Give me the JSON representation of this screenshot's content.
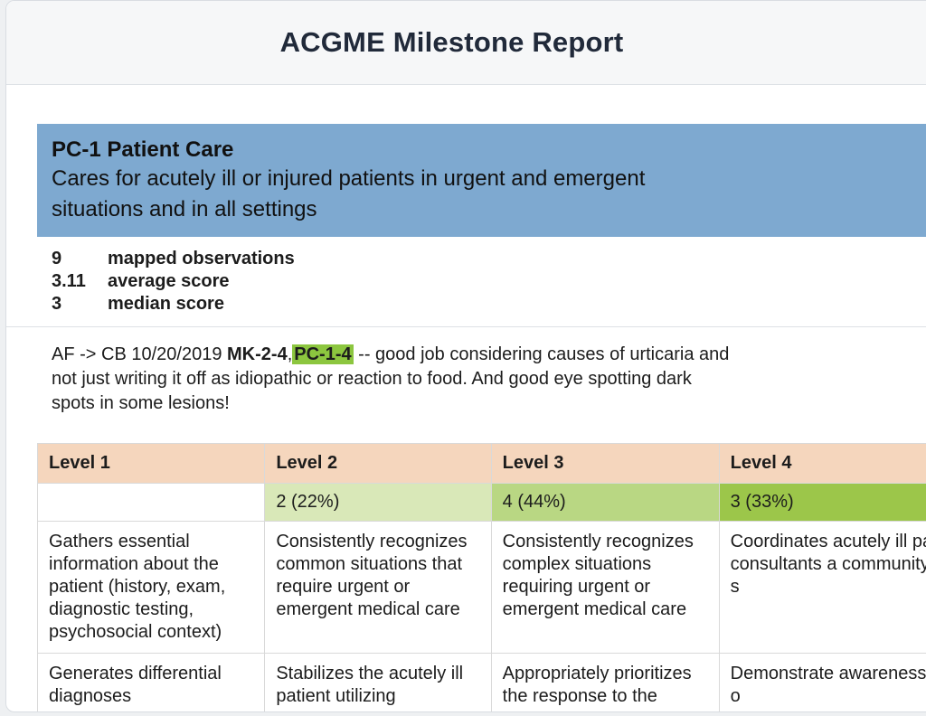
{
  "header": {
    "title": "ACGME Milestone Report"
  },
  "milestone": {
    "code": "PC-1 Patient Care",
    "description": "Cares for acutely ill or injured patients in urgent and emergent situations and in all settings"
  },
  "stats": [
    {
      "value": "9",
      "label": "mapped observations"
    },
    {
      "value": "3.11",
      "label": "average score"
    },
    {
      "value": "3",
      "label": "median score"
    }
  ],
  "comment": {
    "prefix": "AF -> CB 10/20/2019 ",
    "tag1": "MK-2-4",
    "separator": ",",
    "tag2": "PC-1-4",
    "text": " -- good job considering causes of urticaria and not just writing it off as idiopathic or reaction to food. And good eye spotting dark spots in some lesions!"
  },
  "levels": [
    {
      "name": "Level 1",
      "count": "",
      "count_color": "#ffffff",
      "desc1": "Gathers essential information about the patient (history, exam, diagnostic testing, psychosocial context)",
      "desc2": "Generates differential diagnoses"
    },
    {
      "name": "Level 2",
      "count": "2 (22%)",
      "count_color": "#d9e8b8",
      "desc1": "Consistently recognizes common situations that require urgent or emergent medical care",
      "desc2": "Stabilizes the acutely ill patient utilizing"
    },
    {
      "name": "Level 3",
      "count": "4 (44%)",
      "count_color": "#b9d783",
      "desc1": "Consistently recognizes complex situations requiring urgent or emergent medical care",
      "desc2": "Appropriately prioritizes the response to the"
    },
    {
      "name": "Level 4",
      "count": "3 (33%)",
      "count_color": "#9cc64a",
      "desc1": "Coordinates acutely ill pa consultants a community s",
      "desc2": "Demonstrate awareness o"
    }
  ]
}
